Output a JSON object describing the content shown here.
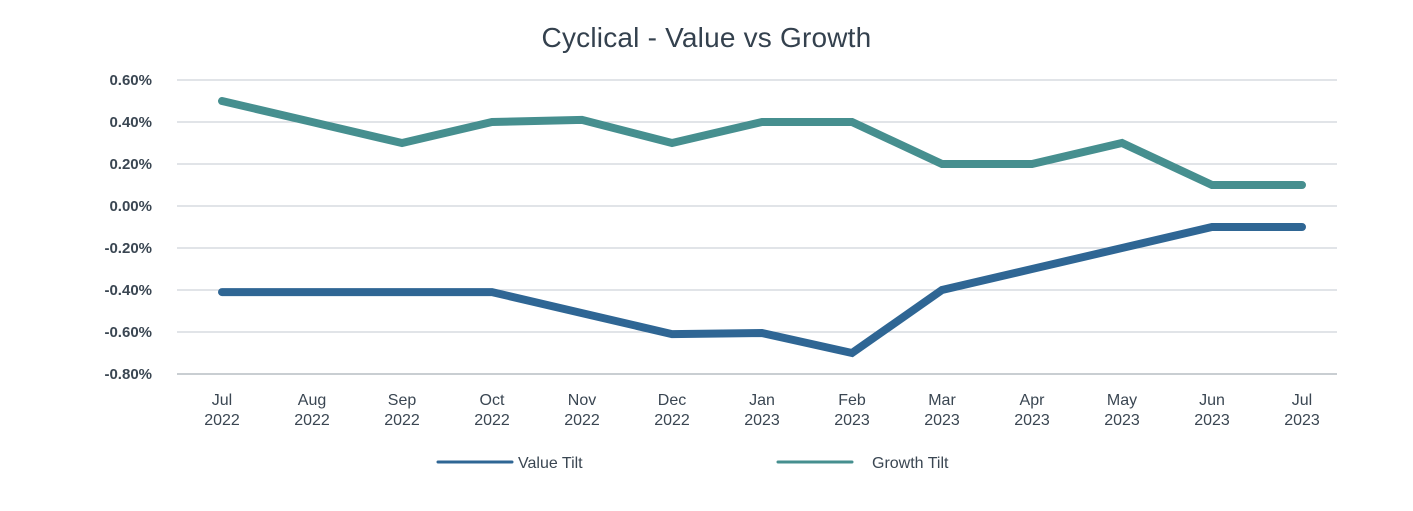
{
  "chart_data": {
    "type": "line",
    "title": "Cyclical - Value vs Growth",
    "xlabel": "",
    "ylabel": "",
    "categories": [
      [
        "Jul",
        "2022"
      ],
      [
        "Aug",
        "2022"
      ],
      [
        "Sep",
        "2022"
      ],
      [
        "Oct",
        "2022"
      ],
      [
        "Nov",
        "2022"
      ],
      [
        "Dec",
        "2022"
      ],
      [
        "Jan",
        "2023"
      ],
      [
        "Feb",
        "2023"
      ],
      [
        "Mar",
        "2023"
      ],
      [
        "Apr",
        "2023"
      ],
      [
        "May",
        "2023"
      ],
      [
        "Jun",
        "2023"
      ],
      [
        "Jul",
        "2023"
      ]
    ],
    "ylim": [
      -0.8,
      0.6
    ],
    "yticks": [
      0.6,
      0.4,
      0.2,
      0.0,
      -0.2,
      -0.4,
      -0.6,
      -0.8
    ],
    "ytick_labels": [
      "0.60%",
      "0.40%",
      "0.20%",
      "0.00%",
      "-0.20%",
      "-0.40%",
      "-0.60%",
      "-0.80%"
    ],
    "grid": true,
    "legend_position": "bottom",
    "series": [
      {
        "name": "Value Tilt",
        "color": "#2f6694",
        "values": [
          -0.41,
          -0.41,
          -0.41,
          -0.41,
          -0.51,
          -0.61,
          -0.605,
          -0.7,
          -0.4,
          -0.3,
          -0.2,
          -0.1,
          -0.1
        ]
      },
      {
        "name": "Growth Tilt",
        "color": "#468f8f",
        "values": [
          0.5,
          0.4,
          0.3,
          0.4,
          0.41,
          0.3,
          0.4,
          0.4,
          0.2,
          0.2,
          0.3,
          0.1,
          0.1
        ]
      }
    ]
  }
}
